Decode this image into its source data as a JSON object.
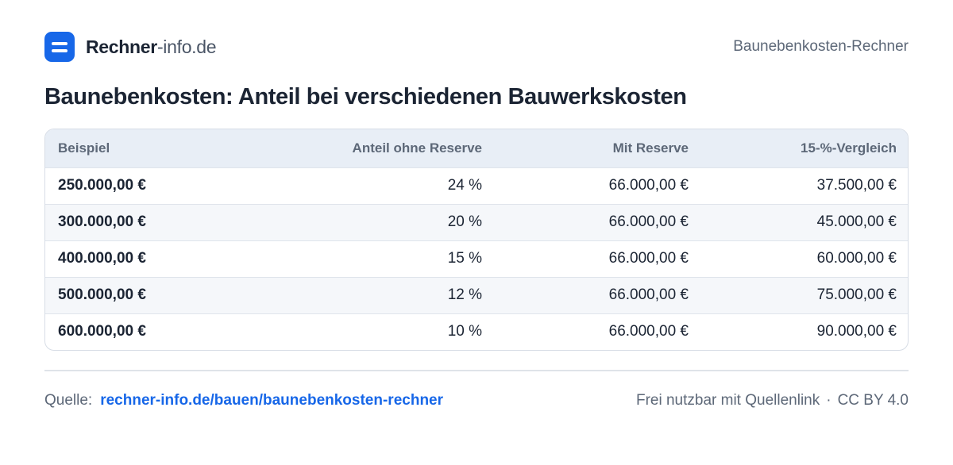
{
  "header": {
    "brand_bold": "Rechner",
    "brand_light": "-info.de",
    "page_label": "Baunebenkosten-Rechner",
    "logo_icon": "menu-lines-icon",
    "accent_color": "#1767e8"
  },
  "title": "Baunebenkosten: Anteil bei verschiedenen Bauwerkskosten",
  "table": {
    "columns": [
      "Beispiel",
      "Anteil ohne Reserve",
      "Mit Reserve",
      "15-%-Vergleich"
    ],
    "rows": [
      [
        "250.000,00 €",
        "24 %",
        "66.000,00 €",
        "37.500,00 €"
      ],
      [
        "300.000,00 €",
        "20 %",
        "66.000,00 €",
        "45.000,00 €"
      ],
      [
        "400.000,00 €",
        "15 %",
        "66.000,00 €",
        "60.000,00 €"
      ],
      [
        "500.000,00 €",
        "12 %",
        "66.000,00 €",
        "75.000,00 €"
      ],
      [
        "600.000,00 €",
        "10 %",
        "66.000,00 €",
        "90.000,00 €"
      ]
    ]
  },
  "footer": {
    "source_label": "Quelle:",
    "source_link": "rechner-info.de/bauen/baunebenkosten-rechner",
    "license_text": "Frei nutzbar mit Quellenlink",
    "separator": "·",
    "license_name": "CC BY 4.0"
  }
}
